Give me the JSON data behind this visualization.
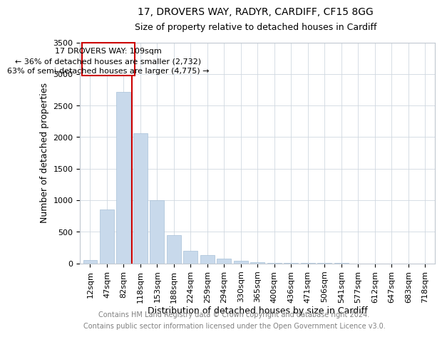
{
  "title": "17, DROVERS WAY, RADYR, CARDIFF, CF15 8GG",
  "subtitle": "Size of property relative to detached houses in Cardiff",
  "xlabel": "Distribution of detached houses by size in Cardiff",
  "ylabel": "Number of detached properties",
  "categories": [
    "12sqm",
    "47sqm",
    "82sqm",
    "118sqm",
    "153sqm",
    "188sqm",
    "224sqm",
    "259sqm",
    "294sqm",
    "330sqm",
    "365sqm",
    "400sqm",
    "436sqm",
    "471sqm",
    "506sqm",
    "541sqm",
    "577sqm",
    "612sqm",
    "647sqm",
    "683sqm",
    "718sqm"
  ],
  "values": [
    50,
    850,
    2720,
    2060,
    1000,
    450,
    200,
    130,
    70,
    40,
    20,
    10,
    5,
    3,
    1,
    1,
    0,
    0,
    0,
    0,
    0
  ],
  "bar_color": "#c8d9eb",
  "bar_edge_color": "#a8c0d8",
  "property_line_color": "#cc0000",
  "annotation_box_color": "#cc0000",
  "annotation_text_line1": "17 DROVERS WAY: 109sqm",
  "annotation_text_line2": "← 36% of detached houses are smaller (2,732)",
  "annotation_text_line3": "63% of semi-detached houses are larger (4,775) →",
  "ylim": [
    0,
    3500
  ],
  "yticks": [
    0,
    500,
    1000,
    1500,
    2000,
    2500,
    3000,
    3500
  ],
  "footer_line1": "Contains HM Land Registry data © Crown copyright and database right 2024.",
  "footer_line2": "Contains public sector information licensed under the Open Government Licence v3.0.",
  "title_fontsize": 10,
  "subtitle_fontsize": 9,
  "tick_fontsize": 8,
  "annotation_fontsize": 8,
  "xlabel_fontsize": 9,
  "ylabel_fontsize": 9,
  "footer_fontsize": 7
}
